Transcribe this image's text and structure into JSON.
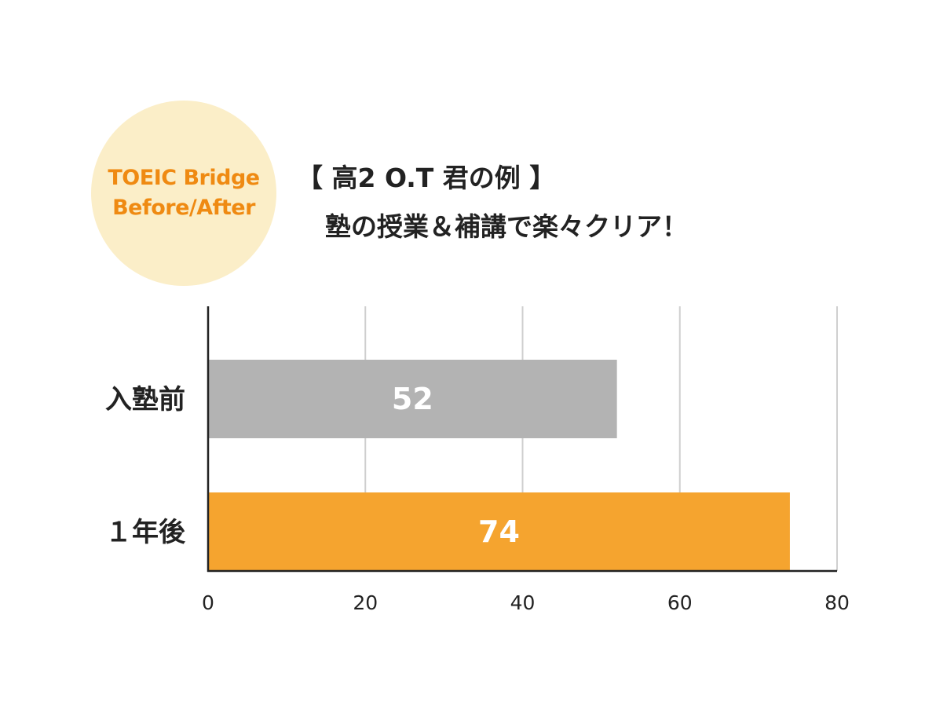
{
  "badge": {
    "line1": "TOEIC Bridge",
    "line2": "Before/After",
    "bg_color": "#fbeec8",
    "text_color": "#ef8a12"
  },
  "heading": {
    "line1": "【 高2  O.T 君の例 】",
    "line2": "塾の授業＆補講で楽々クリア！"
  },
  "chart_data": {
    "type": "bar",
    "orientation": "horizontal",
    "categories": [
      "入塾前",
      "１年後"
    ],
    "values": [
      52,
      74
    ],
    "colors": [
      "#b3b3b3",
      "#f5a42f"
    ],
    "xlim": [
      0,
      80
    ],
    "xticks": [
      0,
      20,
      40,
      60,
      80
    ],
    "grid": true,
    "data_labels": true,
    "title": "",
    "xlabel": "",
    "ylabel": ""
  }
}
